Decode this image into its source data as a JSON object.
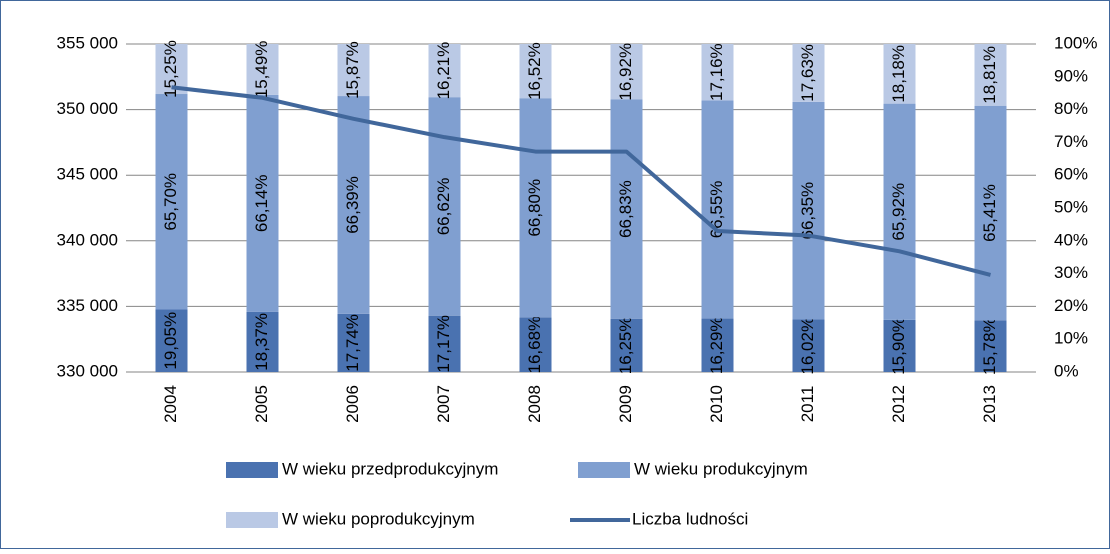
{
  "chart_data": {
    "type": "bar",
    "categories": [
      "2004",
      "2005",
      "2006",
      "2007",
      "2008",
      "2009",
      "2010",
      "2011",
      "2012",
      "2013"
    ],
    "series": [
      {
        "name": "W wieku przedprodukcyjnym",
        "color": "#4a72b0",
        "axis": "y2",
        "values": [
          19.05,
          18.37,
          17.74,
          17.17,
          16.68,
          16.25,
          16.29,
          16.02,
          15.9,
          15.78
        ],
        "value_labels": [
          "19,05%",
          "18,37%",
          "17,74%",
          "17,17%",
          "16,68%",
          "16,25%",
          "16,29%",
          "16,02%",
          "15,90%",
          "15,78%"
        ]
      },
      {
        "name": "W wieku produkcyjnym",
        "color": "#809fd0",
        "axis": "y2",
        "values": [
          65.7,
          66.14,
          66.39,
          66.62,
          66.8,
          66.83,
          66.55,
          66.35,
          65.92,
          65.41
        ],
        "value_labels": [
          "65,70%",
          "66,14%",
          "66,39%",
          "66,62%",
          "66,80%",
          "66,83%",
          "66,55%",
          "66,35%",
          "65,92%",
          "65,41%"
        ]
      },
      {
        "name": "W wieku poprodukcyjnym",
        "color": "#bac9e5",
        "axis": "y2",
        "values": [
          15.25,
          15.49,
          15.87,
          16.21,
          16.52,
          16.92,
          17.16,
          17.63,
          18.18,
          18.81
        ],
        "value_labels": [
          "15,25%",
          "15,49%",
          "15,87%",
          "16,21%",
          "16,52%",
          "16,92%",
          "17,16%",
          "17,63%",
          "18,18%",
          "18,81%"
        ]
      },
      {
        "name": "Liczba ludności",
        "color": "#41679b",
        "type": "line",
        "values": [
          351700,
          350900,
          349300,
          347900,
          346800,
          346800,
          340750,
          340400,
          339200,
          337400
        ]
      }
    ],
    "ylim": [
      330000,
      355000
    ],
    "yticks": [
      {
        "value": 330000,
        "label": "330 000"
      },
      {
        "value": 335000,
        "label": "335 000"
      },
      {
        "value": 340000,
        "label": "340 000"
      },
      {
        "value": 345000,
        "label": "345 000"
      },
      {
        "value": 350000,
        "label": "350 000"
      },
      {
        "value": 355000,
        "label": "355 000"
      }
    ],
    "y2lim": [
      0,
      100
    ],
    "y2ticks": [
      {
        "value": 0,
        "label": "0%"
      },
      {
        "value": 10,
        "label": "10%"
      },
      {
        "value": 20,
        "label": "20%"
      },
      {
        "value": 30,
        "label": "30%"
      },
      {
        "value": 40,
        "label": "40%"
      },
      {
        "value": 50,
        "label": "50%"
      },
      {
        "value": 60,
        "label": "60%"
      },
      {
        "value": 70,
        "label": "70%"
      },
      {
        "value": 80,
        "label": "80%"
      },
      {
        "value": 90,
        "label": "90%"
      },
      {
        "value": 100,
        "label": "100%"
      }
    ],
    "grid": true,
    "legend": "bottom"
  }
}
